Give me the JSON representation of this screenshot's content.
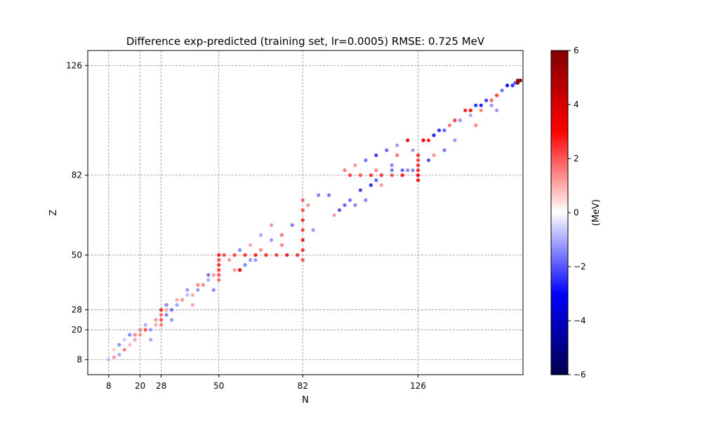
{
  "chart_data": {
    "type": "scatter",
    "title": "Difference exp-predicted (training set, lr=0.0005)  RMSE: 0.725 MeV",
    "xlabel": "N",
    "ylabel": "Z",
    "xlim": [
      0,
      166
    ],
    "ylim": [
      2,
      132
    ],
    "x_ticks": [
      8,
      20,
      28,
      50,
      82,
      126
    ],
    "y_ticks": [
      8,
      20,
      28,
      50,
      82,
      126
    ],
    "grid": true,
    "colorbar": {
      "label": "(MeV)",
      "range": [
        -6,
        6
      ],
      "ticks": [
        -6,
        -4,
        -2,
        0,
        2,
        4,
        6
      ],
      "tick_labels": [
        "−6",
        "−4",
        "−2",
        "0",
        "2",
        "4",
        "6"
      ],
      "colors": [
        "#00004c",
        "#0000ff",
        "#ffffff",
        "#ff0000",
        "#800000"
      ]
    },
    "series": [
      {
        "values_note_free": true,
        "points": [
          [
            8,
            8,
            -0.8
          ],
          [
            10,
            9,
            1.2
          ],
          [
            12,
            10,
            -1.0
          ],
          [
            10,
            12,
            0.6
          ],
          [
            14,
            12,
            1.5
          ],
          [
            12,
            14,
            -1.3
          ],
          [
            16,
            14,
            0.8
          ],
          [
            14,
            16,
            -0.6
          ],
          [
            18,
            16,
            1.0
          ],
          [
            16,
            18,
            -1.4
          ],
          [
            20,
            18,
            1.3
          ],
          [
            20,
            20,
            1.5
          ],
          [
            22,
            20,
            2.0
          ],
          [
            24,
            20,
            -1.2
          ],
          [
            26,
            22,
            1.0
          ],
          [
            28,
            22,
            1.6
          ],
          [
            28,
            24,
            2.0
          ],
          [
            28,
            26,
            1.8
          ],
          [
            30,
            26,
            -1.5
          ],
          [
            28,
            28,
            2.4
          ],
          [
            30,
            28,
            1.0
          ],
          [
            32,
            28,
            -1.6
          ],
          [
            34,
            30,
            -1.0
          ],
          [
            36,
            32,
            1.2
          ],
          [
            38,
            34,
            -0.8
          ],
          [
            40,
            34,
            1.0
          ],
          [
            42,
            36,
            -1.2
          ],
          [
            44,
            38,
            1.4
          ],
          [
            46,
            40,
            -1.0
          ],
          [
            48,
            42,
            1.2
          ],
          [
            50,
            40,
            1.8
          ],
          [
            50,
            42,
            2.0
          ],
          [
            50,
            44,
            2.2
          ],
          [
            50,
            46,
            2.4
          ],
          [
            50,
            48,
            2.0
          ],
          [
            50,
            50,
            2.6
          ],
          [
            52,
            50,
            2.0
          ],
          [
            56,
            50,
            2.2
          ],
          [
            60,
            50,
            2.4
          ],
          [
            64,
            50,
            2.6
          ],
          [
            68,
            50,
            2.4
          ],
          [
            72,
            50,
            2.2
          ],
          [
            76,
            50,
            2.6
          ],
          [
            80,
            50,
            2.4
          ],
          [
            58,
            44,
            3.2
          ],
          [
            60,
            46,
            -1.4
          ],
          [
            62,
            48,
            -1.2
          ],
          [
            66,
            52,
            1.4
          ],
          [
            70,
            56,
            -1.2
          ],
          [
            74,
            58,
            1.6
          ],
          [
            78,
            62,
            -1.5
          ],
          [
            82,
            48,
            2.0
          ],
          [
            82,
            52,
            2.4
          ],
          [
            82,
            56,
            2.6
          ],
          [
            82,
            60,
            2.2
          ],
          [
            82,
            64,
            2.4
          ],
          [
            82,
            68,
            2.0
          ],
          [
            82,
            72,
            1.8
          ],
          [
            84,
            70,
            1.2
          ],
          [
            88,
            74,
            -1.4
          ],
          [
            92,
            74,
            -1.6
          ],
          [
            96,
            68,
            -2.0
          ],
          [
            98,
            70,
            -1.8
          ],
          [
            100,
            72,
            -1.6
          ],
          [
            104,
            76,
            -2.2
          ],
          [
            106,
            72,
            -1.4
          ],
          [
            108,
            78,
            -2.4
          ],
          [
            110,
            80,
            -1.8
          ],
          [
            112,
            82,
            -1.6
          ],
          [
            116,
            84,
            -1.6
          ],
          [
            120,
            84,
            -1.8
          ],
          [
            124,
            84,
            -1.4
          ],
          [
            126,
            80,
            2.8
          ],
          [
            126,
            82,
            3.0
          ],
          [
            126,
            84,
            2.6
          ],
          [
            126,
            86,
            2.4
          ],
          [
            126,
            88,
            2.2
          ],
          [
            126,
            90,
            2.4
          ],
          [
            100,
            82,
            2.2
          ],
          [
            104,
            82,
            2.0
          ],
          [
            108,
            82,
            2.4
          ],
          [
            112,
            82,
            2.2
          ],
          [
            116,
            82,
            2.0
          ],
          [
            120,
            82,
            2.6
          ],
          [
            98,
            84,
            1.6
          ],
          [
            102,
            86,
            1.2
          ],
          [
            106,
            88,
            -1.6
          ],
          [
            110,
            90,
            -2.2
          ],
          [
            114,
            92,
            -1.8
          ],
          [
            118,
            94,
            -1.2
          ],
          [
            122,
            96,
            2.8
          ],
          [
            128,
            96,
            3.2
          ],
          [
            130,
            96,
            2.6
          ],
          [
            132,
            98,
            -2.6
          ],
          [
            134,
            100,
            -2.4
          ],
          [
            136,
            100,
            -1.8
          ],
          [
            138,
            102,
            1.6
          ],
          [
            140,
            104,
            2.2
          ],
          [
            144,
            108,
            2.6
          ],
          [
            146,
            108,
            2.8
          ],
          [
            148,
            110,
            -2.4
          ],
          [
            150,
            110,
            -2.6
          ],
          [
            152,
            112,
            -2.2
          ],
          [
            154,
            112,
            1.8
          ],
          [
            156,
            114,
            2.2
          ],
          [
            158,
            116,
            -1.6
          ],
          [
            160,
            118,
            -2.8
          ],
          [
            162,
            118,
            -2.4
          ],
          [
            163,
            119,
            -2.0
          ],
          [
            164,
            120,
            5.2
          ],
          [
            164,
            119,
            5.6
          ],
          [
            165,
            120,
            6.0
          ],
          [
            142,
            104,
            -1.2
          ],
          [
            146,
            106,
            -1.0
          ],
          [
            150,
            108,
            1.4
          ],
          [
            154,
            110,
            -1.2
          ],
          [
            136,
            92,
            -1.6
          ],
          [
            130,
            88,
            -2.0
          ],
          [
            116,
            86,
            -1.4
          ],
          [
            110,
            84,
            1.4
          ],
          [
            118,
            90,
            1.6
          ],
          [
            124,
            92,
            -1.2
          ],
          [
            70,
            62,
            1.2
          ],
          [
            66,
            58,
            -1.0
          ],
          [
            62,
            54,
            1.0
          ],
          [
            58,
            52,
            -1.4
          ],
          [
            54,
            48,
            1.2
          ],
          [
            46,
            42,
            -1.6
          ],
          [
            42,
            38,
            1.4
          ],
          [
            38,
            36,
            -1.2
          ],
          [
            34,
            32,
            1.0
          ],
          [
            30,
            30,
            -1.4
          ],
          [
            26,
            24,
            1.2
          ],
          [
            22,
            22,
            -1.0
          ],
          [
            18,
            18,
            1.4
          ],
          [
            24,
            16,
            -1.0
          ],
          [
            32,
            24,
            -1.2
          ],
          [
            40,
            30,
            1.0
          ],
          [
            48,
            36,
            -1.4
          ],
          [
            56,
            44,
            1.2
          ],
          [
            64,
            48,
            -1.2
          ],
          [
            74,
            54,
            1.4
          ],
          [
            86,
            60,
            -1.2
          ],
          [
            94,
            66,
            1.2
          ],
          [
            102,
            70,
            -1.4
          ],
          [
            112,
            78,
            1.2
          ],
          [
            122,
            84,
            -1.4
          ],
          [
            132,
            90,
            1.2
          ],
          [
            140,
            96,
            -1.2
          ],
          [
            148,
            102,
            1.4
          ],
          [
            156,
            108,
            -1.2
          ]
        ]
      }
    ]
  }
}
